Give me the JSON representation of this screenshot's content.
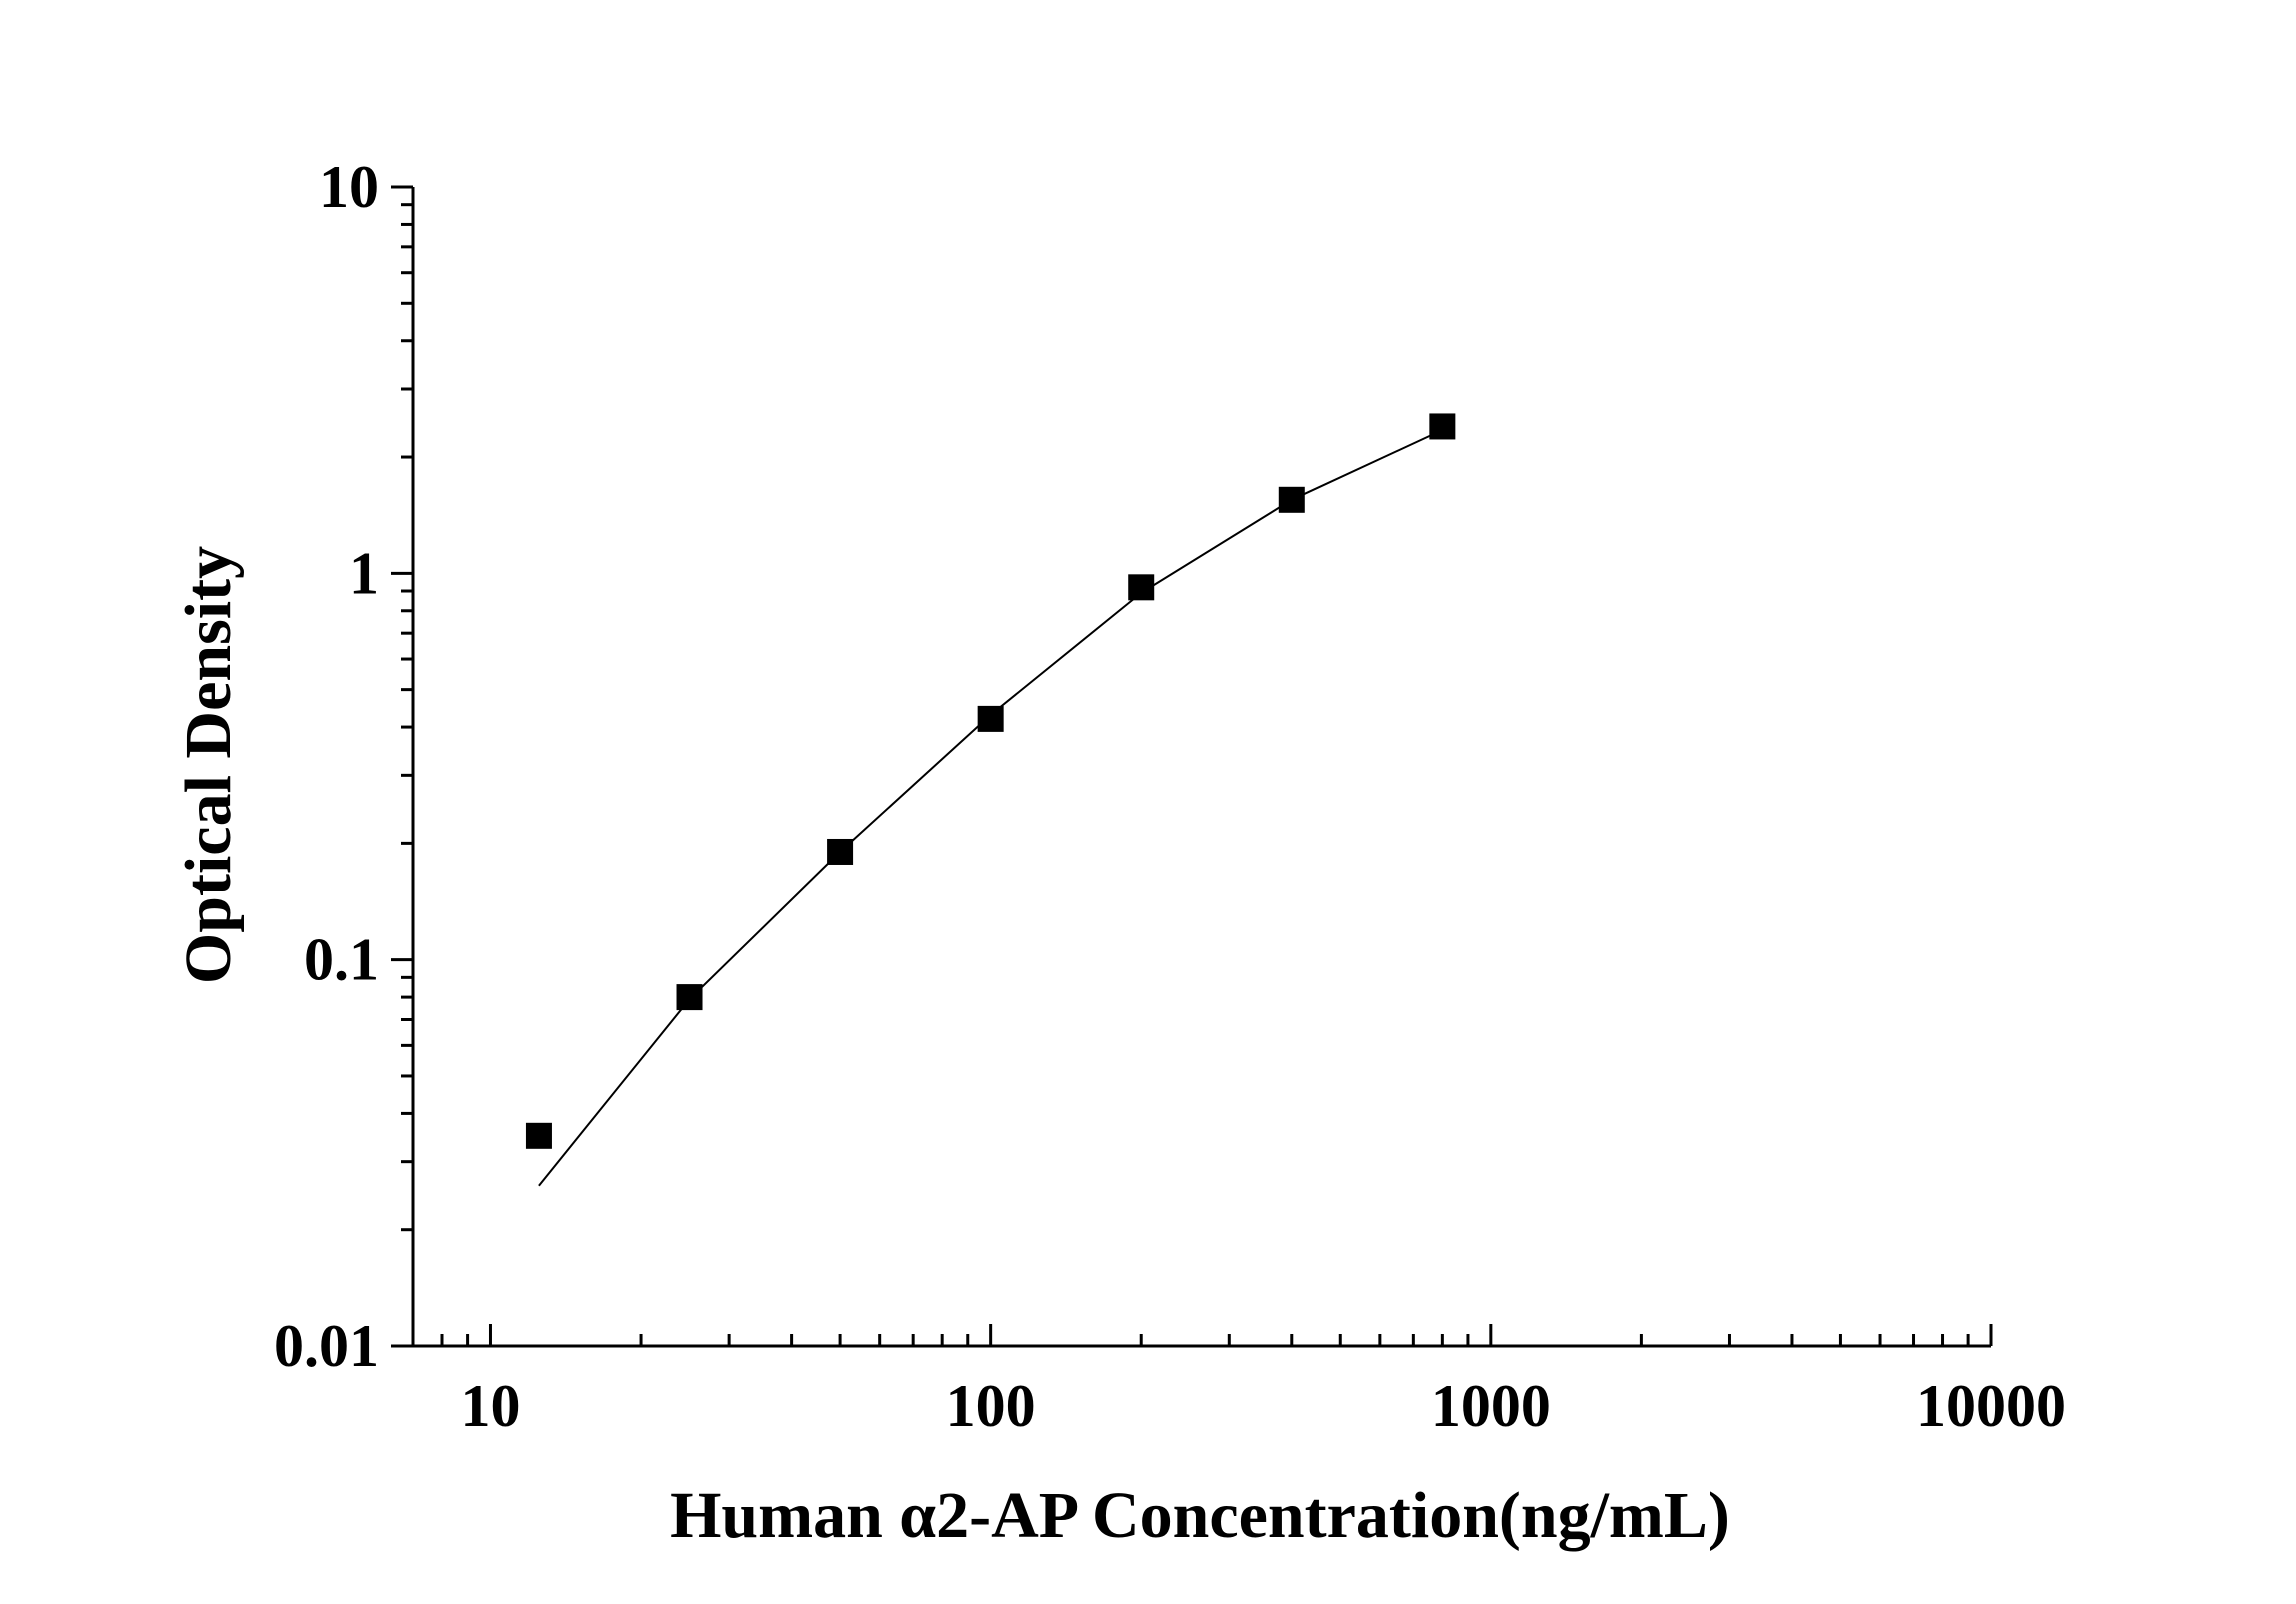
{
  "chart_data": {
    "type": "scatter",
    "xlabel": "Human α2-AP Concentration(ng/mL)",
    "ylabel": "Optical Density",
    "xscale": "log",
    "yscale": "log",
    "xlim": [
      7,
      10000
    ],
    "ylim": [
      0.01,
      10
    ],
    "x_tick_labels": [
      "10",
      "100",
      "1000",
      "10000"
    ],
    "y_tick_labels": [
      "0.01",
      "0.1",
      "1",
      "10"
    ],
    "x_ticks": [
      10,
      100,
      1000,
      10000
    ],
    "y_ticks": [
      0.01,
      0.1,
      1,
      10
    ],
    "grid": false,
    "legend": "none",
    "marker": "square",
    "marker_color": "#000000",
    "line_color": "#000000",
    "series": [
      {
        "points": [
          {
            "x": 12.5,
            "y": 0.035
          },
          {
            "x": 25,
            "y": 0.08
          },
          {
            "x": 50,
            "y": 0.19
          },
          {
            "x": 100,
            "y": 0.42
          },
          {
            "x": 200,
            "y": 0.92
          },
          {
            "x": 400,
            "y": 1.55
          },
          {
            "x": 800,
            "y": 2.4
          }
        ]
      }
    ],
    "fit_curve": [
      {
        "x": 12.5,
        "y": 0.026
      },
      {
        "x": 25,
        "y": 0.079
      },
      {
        "x": 50,
        "y": 0.19
      },
      {
        "x": 100,
        "y": 0.43
      },
      {
        "x": 200,
        "y": 0.89
      },
      {
        "x": 400,
        "y": 1.55
      },
      {
        "x": 800,
        "y": 2.35
      }
    ]
  }
}
